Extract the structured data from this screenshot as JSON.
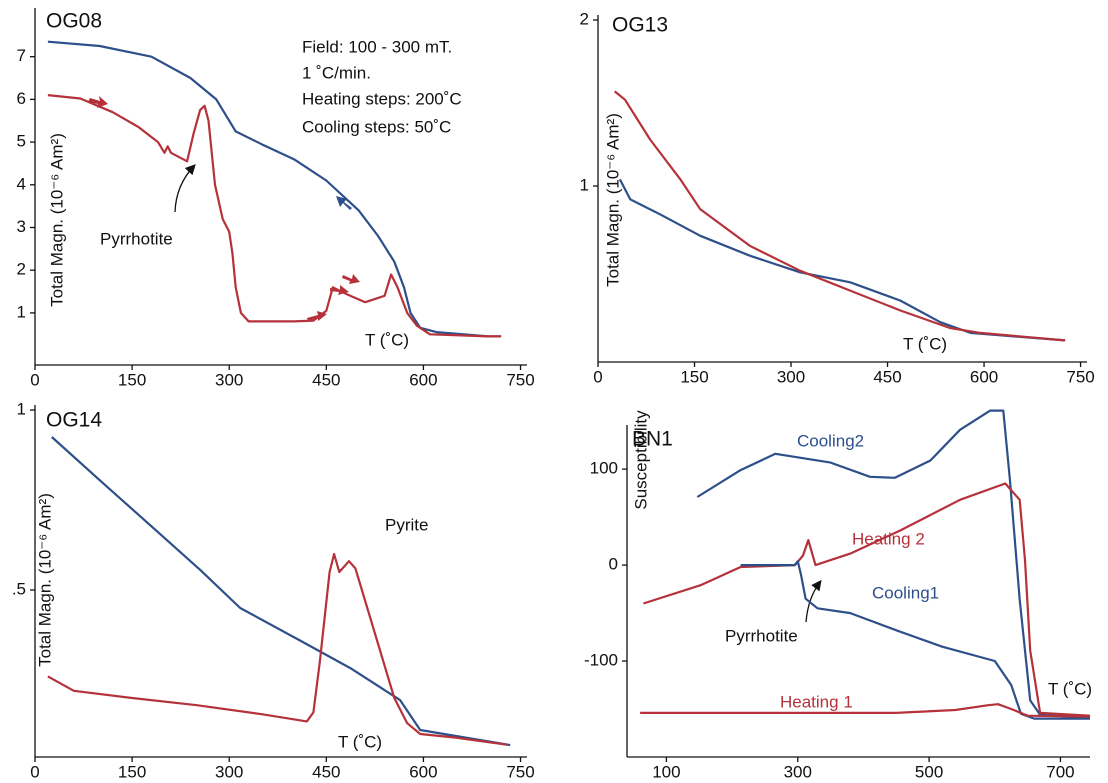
{
  "chart_data": [
    {
      "type": "line",
      "title": "OG08",
      "xlabel": "T (˚C)",
      "ylabel": "Total Magn. (10⁻⁶ Am²)",
      "annotations": [
        "Field: 100 - 300 mT.",
        "1 ˚C/min.",
        "Heating steps: 200˚C",
        "Cooling steps: 50˚C",
        "Pyrrhotite"
      ],
      "xlim": [
        0,
        760
      ],
      "ylim": [
        -0.22,
        8.14
      ],
      "xticks": [
        0,
        150,
        300,
        450,
        600,
        750
      ],
      "yticks": [
        1,
        2,
        3,
        4,
        5,
        6,
        7
      ],
      "series": [
        {
          "color": "#2d4f8a",
          "x": [
            20,
            100,
            180,
            240,
            280,
            300,
            310,
            350,
            400,
            450,
            500,
            530,
            555,
            570,
            580,
            595,
            620,
            700,
            720
          ],
          "values": [
            7.35,
            7.25,
            7.0,
            6.5,
            6.0,
            5.5,
            5.25,
            4.95,
            4.6,
            4.1,
            3.4,
            2.8,
            2.2,
            1.6,
            1.0,
            0.65,
            0.55,
            0.45,
            0.45
          ]
        },
        {
          "color": "#b5323a",
          "x": [
            20,
            70,
            120,
            160,
            190,
            200,
            205,
            210,
            235,
            245,
            255,
            262,
            268,
            278,
            290,
            300,
            305,
            310,
            318,
            330,
            400,
            430,
            450,
            460,
            480,
            510,
            540,
            550,
            560,
            575,
            590,
            610,
            700,
            720
          ],
          "values": [
            6.1,
            6.02,
            5.7,
            5.35,
            5.0,
            4.75,
            4.9,
            4.75,
            4.55,
            5.2,
            5.75,
            5.85,
            5.5,
            4.0,
            3.2,
            2.9,
            2.4,
            1.6,
            1.0,
            0.8,
            0.8,
            0.82,
            1.05,
            1.6,
            1.45,
            1.25,
            1.4,
            1.9,
            1.6,
            1.0,
            0.7,
            0.5,
            0.45,
            0.45
          ]
        }
      ]
    },
    {
      "type": "line",
      "title": "OG13",
      "xlabel": "T (˚C)",
      "ylabel": "Total Magn. (10⁻⁶ Am²)",
      "xlim": [
        0,
        760
      ],
      "ylim": [
        -0.06,
        2.03
      ],
      "xticks": [
        0,
        150,
        300,
        450,
        600,
        750
      ],
      "yticks": [
        1,
        2
      ],
      "series": [
        {
          "color": "#2d4f8a",
          "x": [
            34,
            50,
            96,
            159,
            236,
            314,
            392,
            470,
            532,
            579,
            726
          ],
          "values": [
            1.04,
            0.92,
            0.83,
            0.7,
            0.58,
            0.48,
            0.42,
            0.31,
            0.18,
            0.115,
            0.07
          ]
        },
        {
          "color": "#b5323a",
          "x": [
            26,
            42,
            81,
            128,
            159,
            236,
            314,
            392,
            470,
            547,
            594,
            726
          ],
          "values": [
            1.57,
            1.52,
            1.28,
            1.04,
            0.86,
            0.64,
            0.49,
            0.37,
            0.25,
            0.145,
            0.115,
            0.07
          ]
        }
      ]
    },
    {
      "type": "line",
      "title": "OG14",
      "xlabel": "T (˚C)",
      "ylabel": "Total Magn. (10⁻⁶ Am²)",
      "annotations": [
        "Pyrite"
      ],
      "xlim": [
        0,
        760
      ],
      "ylim": [
        0.036,
        1.014
      ],
      "xticks": [
        0,
        150,
        300,
        450,
        600,
        750
      ],
      "yticks": [
        {
          "value": 0.5,
          "label": ".5"
        },
        1
      ],
      "series": [
        {
          "color": "#2d4f8a",
          "x": [
            26,
            100,
            178,
            255,
            317,
            409,
            487,
            564,
            595,
            641,
            734
          ],
          "values": [
            0.925,
            0.805,
            0.68,
            0.556,
            0.45,
            0.36,
            0.283,
            0.194,
            0.111,
            0.097,
            0.069
          ]
        },
        {
          "color": "#b5323a",
          "x": [
            20,
            60,
            150,
            250,
            350,
            420,
            430,
            440,
            455,
            462,
            470,
            485,
            495,
            505,
            530,
            555,
            575,
            595,
            650,
            730
          ],
          "values": [
            0.26,
            0.22,
            0.2,
            0.18,
            0.155,
            0.135,
            0.16,
            0.3,
            0.55,
            0.6,
            0.55,
            0.58,
            0.56,
            0.5,
            0.35,
            0.2,
            0.13,
            0.1,
            0.09,
            0.07
          ]
        }
      ]
    },
    {
      "type": "line",
      "title": "BN1",
      "xlabel": "T (˚C)",
      "ylabel": "Susceptibility",
      "annotations": [
        "Pyrrhotite"
      ],
      "xlim": [
        40,
        745
      ],
      "ylim": [
        -200,
        146
      ],
      "xticks": [
        100,
        300,
        500,
        700
      ],
      "yticks": [
        -100,
        0,
        100
      ],
      "series": [
        {
          "name": "Cooling2",
          "color": "#2d4f8a",
          "x": [
            147,
            213,
            266,
            349,
            410,
            448,
            502,
            547,
            593,
            613,
            623,
            638,
            654,
            669,
            745
          ],
          "values": [
            71,
            99,
            116,
            107,
            92,
            91,
            109,
            141,
            161,
            161,
            89,
            -36,
            -141,
            -156,
            -159
          ]
        },
        {
          "name": "Heating 2",
          "color": "#b5323a",
          "x": [
            65,
            152,
            213,
            296,
            308,
            316,
            327,
            380,
            456,
            547,
            616,
            638,
            646,
            654,
            669,
            745
          ],
          "values": [
            -40,
            -21,
            -2,
            0,
            10,
            26,
            0,
            12,
            36,
            68,
            85,
            68,
            5,
            -89,
            -154,
            -157
          ]
        },
        {
          "name": "Cooling1",
          "color": "#2d4f8a",
          "x": [
            213,
            260,
            295,
            300,
            305,
            312,
            330,
            380,
            450,
            520,
            600,
            625,
            640,
            660,
            745
          ],
          "values": [
            0,
            0,
            0,
            4,
            -10,
            -35,
            -45,
            -50,
            -68,
            -85,
            -100,
            -125,
            -155,
            -160,
            -160
          ]
        },
        {
          "name": "Heating 1",
          "color": "#b5323a",
          "x": [
            60,
            300,
            450,
            540,
            590,
            605,
            625,
            650,
            745
          ],
          "values": [
            -154,
            -154,
            -154,
            -151,
            -146,
            -145,
            -150,
            -157,
            -158
          ]
        }
      ]
    }
  ]
}
